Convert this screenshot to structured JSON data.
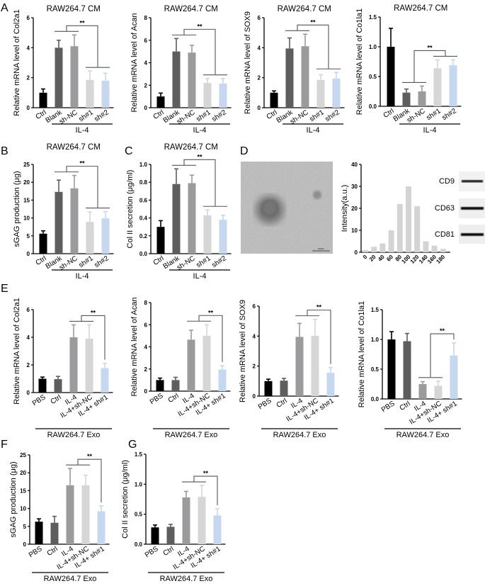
{
  "panels": [
    "A",
    "B",
    "C",
    "D",
    "E",
    "F",
    "G"
  ],
  "colors": {
    "black": "#000000",
    "dark_gray": "#5e5e5e",
    "mid_gray": "#9b9b9d",
    "light_gray": "#d6d6d6",
    "light_blue": "#c5d8ef",
    "hist": "#d4d4d4",
    "sig_line": "#555555"
  },
  "panel_d": {
    "blot_labels": [
      "CD9",
      "CD63",
      "CD81"
    ],
    "scale_bar": "100nm"
  },
  "chart_data": [
    {
      "type": "bar",
      "title": "RAW264.7 CM",
      "ylabel": "Relative mRNA level of Col2a1",
      "ylim": [
        0,
        6
      ],
      "yticks": [
        "0",
        "2",
        "4",
        "6"
      ],
      "categories": [
        "Ctrl",
        "Blank",
        "sh-NC",
        "sh#1",
        "sh#2"
      ],
      "values": [
        1,
        4,
        4.1,
        1.85,
        1.8
      ],
      "errors": [
        0.25,
        0.5,
        0.75,
        0.6,
        0.5
      ],
      "bar_colors": [
        "#000000",
        "#5e5e5e",
        "#9b9b9d",
        "#d6d6d6",
        "#c5d8ef"
      ],
      "group_label": "IL-4",
      "group_span": [
        1,
        4
      ],
      "significance": {
        "groups": [
          [
            1,
            2
          ],
          [
            3,
            4
          ]
        ],
        "label": "**"
      }
    },
    {
      "type": "bar",
      "title": "RAW264.7 CM",
      "ylabel": "Relative mRNA level of Acan",
      "ylim": [
        0,
        8
      ],
      "yticks": [
        "0",
        "2",
        "4",
        "6",
        "8"
      ],
      "categories": [
        "Ctrl",
        "Blank",
        "sh-NC",
        "sh#1",
        "sh#2"
      ],
      "values": [
        1,
        5,
        4.9,
        2.2,
        2.15
      ],
      "errors": [
        0.3,
        1.15,
        0.65,
        0.4,
        0.45
      ],
      "bar_colors": [
        "#000000",
        "#5e5e5e",
        "#9b9b9d",
        "#d6d6d6",
        "#c5d8ef"
      ],
      "group_label": "IL-4",
      "group_span": [
        1,
        4
      ],
      "significance": {
        "groups": [
          [
            1,
            2
          ],
          [
            3,
            4
          ]
        ],
        "label": "**"
      }
    },
    {
      "type": "bar",
      "title": "RAW264.7 CM",
      "ylabel": "Relative mRNA level of SOX9",
      "ylim": [
        0,
        6
      ],
      "yticks": [
        "0",
        "2",
        "4",
        "6"
      ],
      "categories": [
        "Ctrl",
        "Blank",
        "sh-NC",
        "sh#1",
        "sh#2"
      ],
      "values": [
        1,
        3.95,
        4.1,
        1.85,
        1.95
      ],
      "errors": [
        0.12,
        0.7,
        0.8,
        0.35,
        0.4
      ],
      "bar_colors": [
        "#000000",
        "#5e5e5e",
        "#9b9b9d",
        "#d6d6d6",
        "#c5d8ef"
      ],
      "group_label": "IL-4",
      "group_span": [
        1,
        4
      ],
      "significance": {
        "groups": [
          [
            1,
            2
          ],
          [
            3,
            4
          ]
        ],
        "label": "**"
      }
    },
    {
      "type": "bar",
      "title": "RAW264.7 CM",
      "ylabel": "Relative mRNA level of Co1la1",
      "ylim": [
        0,
        1.5
      ],
      "yticks": [
        "0.0",
        "0.5",
        "1.0",
        "1.5"
      ],
      "categories": [
        "Ctrl",
        "Blank",
        "sh-NC",
        "sh#1",
        "sh#2"
      ],
      "values": [
        1,
        0.23,
        0.25,
        0.64,
        0.69
      ],
      "errors": [
        0.31,
        0.06,
        0.09,
        0.14,
        0.09
      ],
      "bar_colors": [
        "#000000",
        "#5e5e5e",
        "#9b9b9d",
        "#d6d6d6",
        "#c5d8ef"
      ],
      "group_label": "IL-4",
      "group_span": [
        1,
        4
      ],
      "significance": {
        "groups": [
          [
            1,
            2
          ],
          [
            3,
            4
          ]
        ],
        "label": "**"
      }
    },
    {
      "type": "bar",
      "title": "RAW264.7 CM",
      "ylabel": "sGAG production (μg)",
      "ylim": [
        0,
        25
      ],
      "yticks": [
        "0",
        "5",
        "10",
        "15",
        "20",
        "25"
      ],
      "categories": [
        "Ctrl",
        "Blank",
        "sh-NC",
        "sh#1",
        "sh#2"
      ],
      "values": [
        5.6,
        17.3,
        18.3,
        8.9,
        9.9
      ],
      "errors": [
        0.8,
        3.3,
        3.6,
        2.8,
        1.9
      ],
      "bar_colors": [
        "#000000",
        "#5e5e5e",
        "#9b9b9d",
        "#d6d6d6",
        "#c5d8ef"
      ],
      "group_label": "IL-4",
      "group_span": [
        1,
        4
      ],
      "significance": {
        "groups": [
          [
            1,
            2
          ],
          [
            3,
            4
          ]
        ],
        "label": "**"
      }
    },
    {
      "type": "bar",
      "title": "RAW264.7 CM",
      "ylabel": "Col II secretion (μg/ml)",
      "ylim": [
        0,
        1.0
      ],
      "yticks": [
        "0.0",
        "0.2",
        "0.4",
        "0.6",
        "0.8",
        "1.0"
      ],
      "categories": [
        "Ctrl",
        "Blank",
        "sh-NC",
        "sh#1",
        "sh#2"
      ],
      "values": [
        0.3,
        0.78,
        0.79,
        0.43,
        0.38
      ],
      "errors": [
        0.07,
        0.17,
        0.09,
        0.06,
        0.05
      ],
      "bar_colors": [
        "#000000",
        "#5e5e5e",
        "#9b9b9d",
        "#d6d6d6",
        "#c5d8ef"
      ],
      "group_label": "IL-4",
      "group_span": [
        1,
        4
      ],
      "significance": {
        "groups": [
          [
            1,
            2
          ],
          [
            3,
            4
          ]
        ],
        "label": "**"
      }
    },
    {
      "type": "bar",
      "title": "",
      "ylabel": "Intensity(a.u.)",
      "ylim": [
        0,
        40
      ],
      "yticks": [
        "0",
        "10",
        "20",
        "30",
        "40"
      ],
      "categories": [
        "0",
        "20",
        "40",
        "60",
        "80",
        "100",
        "120",
        "140",
        "160",
        "180"
      ],
      "values": [
        1,
        2.5,
        4,
        10,
        22,
        30,
        21,
        5,
        3,
        1.5
      ],
      "errors": [],
      "bar_colors": [
        "#d4d4d4"
      ]
    },
    {
      "type": "bar",
      "title": "",
      "ylabel": "Relative mRNA level of Col2a1",
      "ylim": [
        0,
        6
      ],
      "yticks": [
        "0",
        "2",
        "4",
        "6"
      ],
      "categories": [
        "PBS",
        "Ctrl",
        "IL-4",
        "IL-4+sh-NC",
        "IL-4+ sh#1"
      ],
      "values": [
        1,
        0.97,
        4,
        3.9,
        1.77
      ],
      "errors": [
        0.12,
        0.2,
        0.9,
        1.0,
        0.35
      ],
      "bar_colors": [
        "#000000",
        "#5e5e5e",
        "#9b9b9d",
        "#d6d6d6",
        "#c5d8ef"
      ],
      "group_label": "RAW264.7 Exo",
      "group_span": [
        0,
        4
      ],
      "significance": {
        "groups": [
          [
            2,
            3
          ],
          [
            4
          ]
        ],
        "label": "**"
      }
    },
    {
      "type": "bar",
      "title": "",
      "ylabel": "Relative mRNA level of Acan",
      "ylim": [
        0,
        8
      ],
      "yticks": [
        "0",
        "2",
        "4",
        "6",
        "8"
      ],
      "categories": [
        "PBS",
        "Ctrl",
        "IL-4",
        "IL-4+sh-NC",
        "IL-4+ sh#1"
      ],
      "values": [
        1,
        1,
        4.65,
        5,
        1.95
      ],
      "errors": [
        0.18,
        0.25,
        0.85,
        1.0,
        0.35
      ],
      "bar_colors": [
        "#000000",
        "#5e5e5e",
        "#9b9b9d",
        "#d6d6d6",
        "#c5d8ef"
      ],
      "group_label": "RAW264.7 Exo",
      "group_span": [
        0,
        4
      ],
      "significance": {
        "groups": [
          [
            2,
            3
          ],
          [
            4
          ]
        ],
        "label": "**"
      }
    },
    {
      "type": "bar",
      "title": "",
      "ylabel": "Relative mRNA level of SOX9",
      "ylim": [
        0,
        6
      ],
      "yticks": [
        "0",
        "2",
        "4",
        "6"
      ],
      "categories": [
        "PBS",
        "Ctrl",
        "IL-4",
        "IL-4+sh-NC",
        "IL-4+ sh#1"
      ],
      "values": [
        1,
        1.03,
        3.95,
        4.02,
        1.55
      ],
      "errors": [
        0.13,
        0.15,
        0.9,
        1.1,
        0.35
      ],
      "bar_colors": [
        "#000000",
        "#5e5e5e",
        "#9b9b9d",
        "#d6d6d6",
        "#c5d8ef"
      ],
      "group_label": "RAW264.7 Exo",
      "group_span": [
        0,
        4
      ],
      "significance": {
        "groups": [
          [
            2,
            3
          ],
          [
            4
          ]
        ],
        "label": "**"
      }
    },
    {
      "type": "bar",
      "title": "",
      "ylabel": "Relative mRNA level of Co1la1",
      "ylim": [
        0,
        1.5
      ],
      "yticks": [
        "0.0",
        "0.5",
        "1.0",
        "1.5"
      ],
      "categories": [
        "PBS",
        "Ctrl",
        "IL-4",
        "IL-4+sh-NC",
        "IL-4+ sh#1"
      ],
      "values": [
        1,
        0.97,
        0.25,
        0.22,
        0.73
      ],
      "errors": [
        0.13,
        0.13,
        0.04,
        0.08,
        0.21
      ],
      "bar_colors": [
        "#000000",
        "#5e5e5e",
        "#9b9b9d",
        "#d6d6d6",
        "#c5d8ef"
      ],
      "group_label": "RAW264.7 Exo",
      "group_span": [
        0,
        4
      ],
      "significance": {
        "groups": [
          [
            2,
            3
          ],
          [
            4
          ]
        ],
        "label": "**"
      }
    },
    {
      "type": "bar",
      "title": "",
      "ylabel": "sGAG production (μg)",
      "ylim": [
        0,
        25
      ],
      "yticks": [
        "0",
        "5",
        "10",
        "15",
        "20",
        "25"
      ],
      "categories": [
        "PBS",
        "Ctrl",
        "IL-4",
        "IL-4+sh-NC",
        "IL-4+ sh#1"
      ],
      "values": [
        6.3,
        6,
        16.5,
        16.5,
        9.2
      ],
      "errors": [
        0.8,
        1.8,
        4.7,
        2.8,
        1.5
      ],
      "bar_colors": [
        "#000000",
        "#5e5e5e",
        "#9b9b9d",
        "#d6d6d6",
        "#c5d8ef"
      ],
      "group_label": "RAW264.7 Exo",
      "group_span": [
        0,
        4
      ],
      "significance": {
        "groups": [
          [
            2,
            3
          ],
          [
            4
          ]
        ],
        "label": "**"
      }
    },
    {
      "type": "bar",
      "title": "",
      "ylabel": "Col II secretion (μg/ml)",
      "ylim": [
        0,
        1.5
      ],
      "yticks": [
        "0.0",
        "0.5",
        "1.0",
        "1.5"
      ],
      "categories": [
        "PBS",
        "Ctrl",
        "IL-4",
        "IL-4+sh-NC",
        "IL-4+ sh#1"
      ],
      "values": [
        0.28,
        0.29,
        0.78,
        0.79,
        0.48
      ],
      "errors": [
        0.04,
        0.04,
        0.1,
        0.19,
        0.11
      ],
      "bar_colors": [
        "#000000",
        "#5e5e5e",
        "#9b9b9d",
        "#d6d6d6",
        "#c5d8ef"
      ],
      "group_label": "RAW264.7 Exo",
      "group_span": [
        0,
        4
      ],
      "significance": {
        "groups": [
          [
            2,
            3
          ],
          [
            4
          ]
        ],
        "label": "**"
      }
    }
  ]
}
